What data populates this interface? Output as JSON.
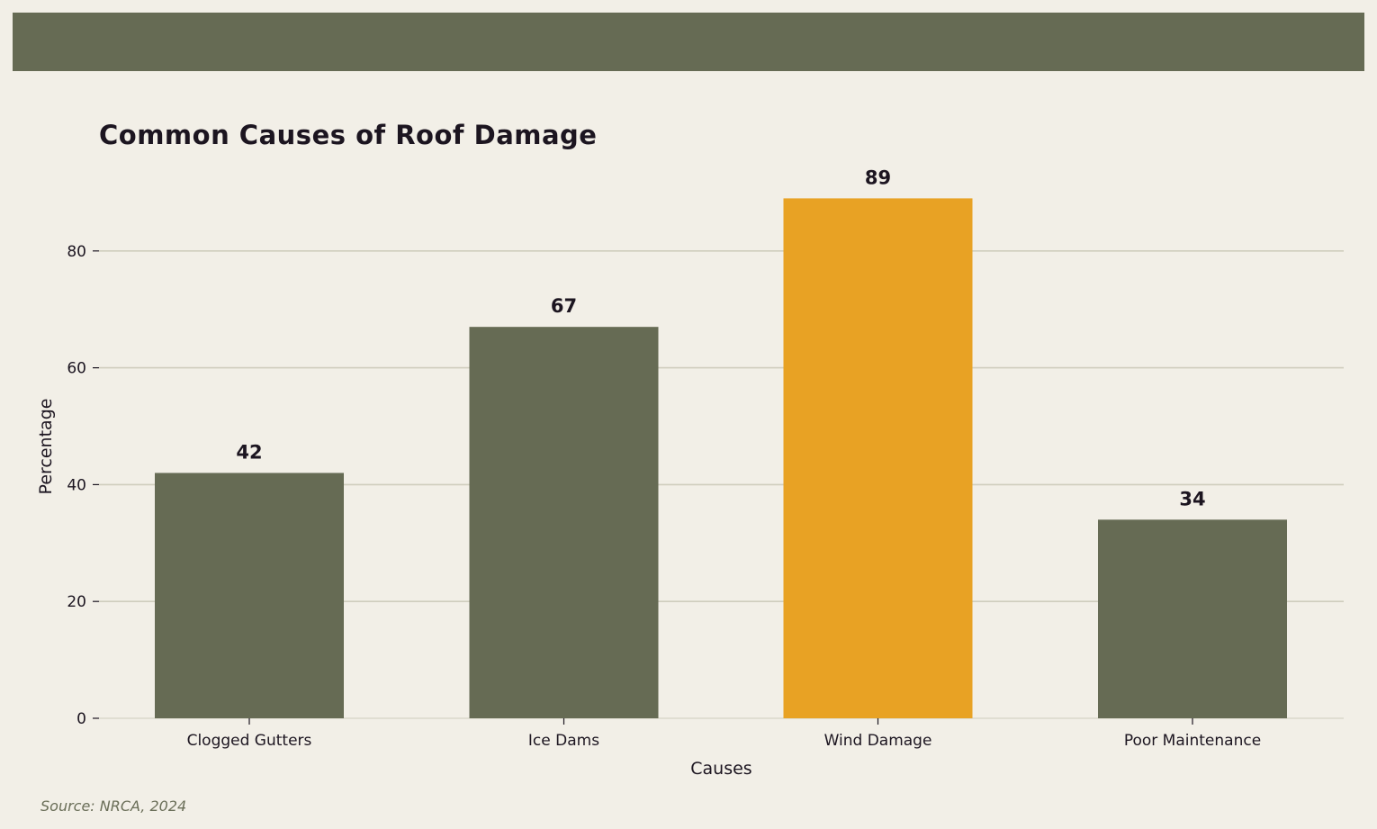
{
  "colors": {
    "background": "#f2efe7",
    "band": "#666b54",
    "bar_default": "#666b54",
    "bar_highlight": "#e8a224",
    "grid": "#cfcdbd",
    "text": "#1c1520",
    "source_text": "#6a6e58"
  },
  "chart_data": {
    "type": "bar",
    "title": "Common Causes of Roof Damage",
    "xlabel": "Causes",
    "ylabel": "Percentage",
    "categories": [
      "Clogged Gutters",
      "Ice Dams",
      "Wind Damage",
      "Poor Maintenance"
    ],
    "values": [
      42,
      67,
      89,
      34
    ],
    "value_labels": [
      "42",
      "67",
      "89",
      "34"
    ],
    "highlight_category": "Wind Damage",
    "ylim": [
      0,
      94
    ],
    "yticks": [
      0,
      20,
      40,
      60,
      80
    ],
    "ytick_labels": [
      "0",
      "20",
      "40",
      "60",
      "80"
    ],
    "grid": true,
    "legend": "none"
  },
  "footer": {
    "source": "Source: NRCA, 2024"
  }
}
